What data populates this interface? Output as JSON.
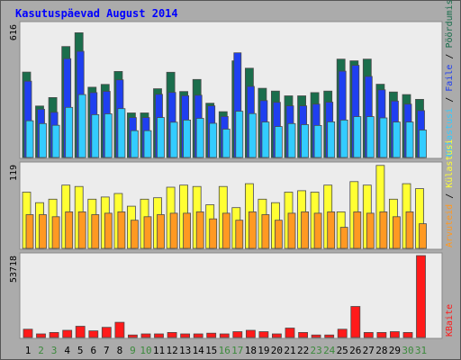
{
  "chart_data": [
    {
      "type": "bar",
      "title": "Kasutuspäevad August 2014",
      "categories": [
        "1",
        "2",
        "3",
        "4",
        "5",
        "6",
        "7",
        "8",
        "9",
        "10",
        "11",
        "12",
        "13",
        "14",
        "15",
        "16",
        "17",
        "18",
        "19",
        "20",
        "21",
        "22",
        "23",
        "24",
        "25",
        "26",
        "27",
        "28",
        "29",
        "30",
        "31"
      ],
      "ymax_label": "616",
      "ylim": [
        0,
        616
      ],
      "series": [
        {
          "name": "Pöördumisi",
          "color": "#1a6e4c",
          "values": [
            395,
            238,
            277,
            513,
            577,
            325,
            338,
            398,
            206,
            206,
            318,
            394,
            305,
            361,
            251,
            212,
            447,
            413,
            320,
            307,
            285,
            285,
            300,
            307,
            455,
            447,
            455,
            339,
            303,
            291,
            269
          ]
        },
        {
          "name": "Faile",
          "color": "#1f3ff0",
          "values": [
            353,
            223,
            209,
            457,
            491,
            300,
            306,
            359,
            185,
            185,
            292,
            301,
            286,
            288,
            239,
            190,
            484,
            329,
            263,
            255,
            239,
            239,
            247,
            256,
            399,
            426,
            375,
            313,
            261,
            247,
            217
          ]
        },
        {
          "name": "Külastusi",
          "color": "#33ccff",
          "values": [
            170,
            157,
            149,
            232,
            291,
            198,
            202,
            226,
            124,
            124,
            185,
            163,
            173,
            181,
            158,
            131,
            214,
            203,
            164,
            143,
            157,
            152,
            148,
            165,
            173,
            189,
            189,
            183,
            164,
            164,
            127
          ]
        }
      ],
      "legend_sep": "/"
    },
    {
      "type": "bar",
      "ymax_label": "119",
      "ylim": [
        0,
        119
      ],
      "series": [
        {
          "name": "Külastusi",
          "color": "#ffff33",
          "values": [
            80,
            65,
            70,
            90,
            88,
            70,
            73,
            78,
            60,
            70,
            72,
            87,
            90,
            88,
            62,
            88,
            58,
            92,
            70,
            65,
            80,
            82,
            80,
            90,
            52,
            95,
            90,
            118,
            70,
            92,
            85
          ]
        },
        {
          "name": "Arvuteid",
          "color": "#ff9922",
          "values": [
            48,
            48,
            45,
            52,
            52,
            48,
            50,
            52,
            40,
            45,
            48,
            50,
            50,
            52,
            42,
            50,
            40,
            52,
            48,
            40,
            50,
            52,
            50,
            52,
            30,
            52,
            50,
            52,
            45,
            52,
            35
          ]
        }
      ],
      "legend_sep": "/"
    },
    {
      "type": "bar",
      "ymax_label": "53718",
      "ylim": [
        0,
        53718
      ],
      "series": [
        {
          "name": "KBaite",
          "color": "#ff1a1a",
          "values": [
            5440,
            2390,
            3330,
            4750,
            7370,
            4380,
            6660,
            9990,
            1670,
            2390,
            2390,
            3330,
            2390,
            2390,
            2860,
            2390,
            3810,
            4750,
            3810,
            2390,
            6200,
            3330,
            1670,
            1670,
            5440,
            20360,
            3330,
            3330,
            3810,
            3330,
            53718
          ]
        }
      ]
    }
  ],
  "weekend_days": [
    2,
    3,
    9,
    10,
    16,
    17,
    23,
    24,
    30,
    31
  ],
  "colors": {
    "frame_bg": "#ababab",
    "panel_bg": "#ececec",
    "title": "#0000ff",
    "axis_text": "#000000",
    "weekday_label": "#000000",
    "weekend_label": "#3c8a3c",
    "legend_sep": "#000000"
  }
}
